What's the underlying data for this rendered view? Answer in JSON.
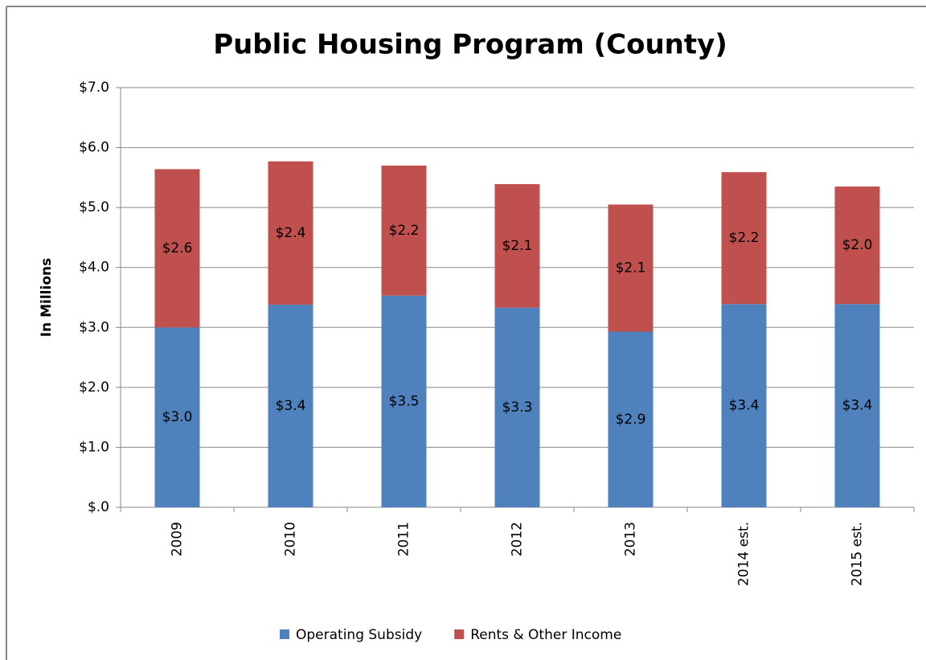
{
  "chart_data": {
    "type": "stacked_bar",
    "title": "Public Housing Program (County)",
    "y_label": "In Millions",
    "categories": [
      "2009",
      "2010",
      "2011",
      "2012",
      "2013",
      "2014 est.",
      "2015 est."
    ],
    "series": [
      {
        "name": "Operating Subsidy",
        "color": "#4f81bd",
        "values": [
          3.0,
          3.38,
          3.53,
          3.33,
          2.93,
          3.39,
          3.39
        ],
        "value_labels": [
          "$3.0",
          "$3.4",
          "$3.5",
          "$3.3",
          "$2.9",
          "$3.4",
          "$3.4"
        ]
      },
      {
        "name": "Rents & Other Income",
        "color": "#c0504d",
        "values": [
          2.64,
          2.39,
          2.17,
          2.06,
          2.12,
          2.2,
          1.96
        ],
        "value_labels": [
          "$2.6",
          "$2.4",
          "$2.2",
          "$2.1",
          "$2.1",
          "$2.2",
          "$2.0"
        ]
      }
    ],
    "ylim": [
      0,
      7
    ],
    "yticks": [
      {
        "value": 0,
        "label": "$.0"
      },
      {
        "value": 1,
        "label": "$1.0"
      },
      {
        "value": 2,
        "label": "$2.0"
      },
      {
        "value": 3,
        "label": "$3.0"
      },
      {
        "value": 4,
        "label": "$4.0"
      },
      {
        "value": 5,
        "label": "$5.0"
      },
      {
        "value": 6,
        "label": "$6.0"
      },
      {
        "value": 7,
        "label": "$7.0"
      }
    ],
    "grid": true,
    "legend": "bottom"
  }
}
